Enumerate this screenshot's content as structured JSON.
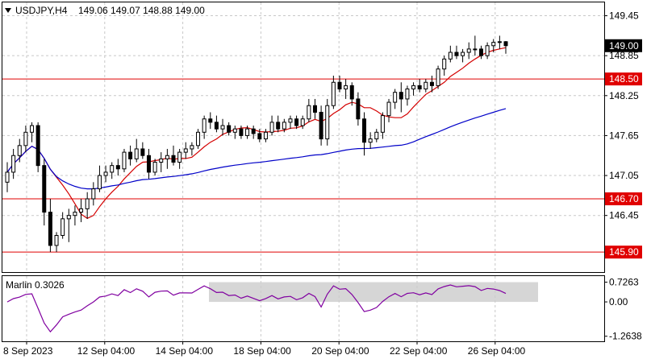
{
  "header": {
    "symbol_label": "USDJPY,H4",
    "ohlc_label": "149.06 149.07 148.88 149.00",
    "menu_icon": "triangle-down-icon"
  },
  "chart_data": {
    "type": "candlestick",
    "symbol": "USDJPY",
    "timeframe": "H4",
    "ohlc": {
      "open": 149.06,
      "high": 149.07,
      "low": 148.88,
      "close": 149.0
    },
    "ylim": [
      145.6,
      149.65
    ],
    "y_ticks": [
      "149.45",
      "148.85",
      "148.25",
      "147.65",
      "147.05",
      "146.45"
    ],
    "x_ticks": [
      "8 Sep 2023",
      "12 Sep 04:00",
      "14 Sep 04:00",
      "18 Sep 04:00",
      "20 Sep 04:00",
      "22 Sep 04:00",
      "26 Sep 04:00"
    ],
    "current_price": {
      "value": 149.0,
      "label": "149.00"
    },
    "levels": [
      {
        "value": 148.5,
        "label": "148.50",
        "color": "#e00000"
      },
      {
        "value": 146.7,
        "label": "146.70",
        "color": "#e00000"
      },
      {
        "value": 145.9,
        "label": "145.90",
        "color": "#e00000"
      }
    ],
    "candles": [
      [
        146.95,
        147.25,
        146.8,
        147.1
      ],
      [
        147.1,
        147.45,
        147.0,
        147.35
      ],
      [
        147.35,
        147.6,
        147.25,
        147.5
      ],
      [
        147.5,
        147.8,
        147.4,
        147.7
      ],
      [
        147.7,
        147.85,
        147.55,
        147.8
      ],
      [
        147.8,
        147.85,
        147.1,
        147.2
      ],
      [
        147.2,
        147.3,
        146.3,
        146.5
      ],
      [
        146.5,
        146.7,
        145.9,
        146.0
      ],
      [
        146.0,
        146.2,
        145.9,
        146.15
      ],
      [
        146.15,
        146.5,
        146.1,
        146.4
      ],
      [
        146.4,
        146.55,
        146.05,
        146.45
      ],
      [
        146.45,
        146.6,
        146.3,
        146.5
      ],
      [
        146.5,
        146.7,
        146.35,
        146.55
      ],
      [
        146.55,
        146.8,
        146.4,
        146.7
      ],
      [
        146.7,
        146.95,
        146.6,
        146.85
      ],
      [
        146.85,
        147.2,
        146.8,
        147.05
      ],
      [
        147.05,
        147.2,
        146.95,
        147.1
      ],
      [
        147.1,
        147.25,
        147.0,
        147.2
      ],
      [
        147.2,
        147.3,
        147.05,
        147.15
      ],
      [
        147.15,
        147.45,
        147.1,
        147.4
      ],
      [
        147.4,
        147.5,
        147.2,
        147.3
      ],
      [
        147.3,
        147.6,
        147.25,
        147.45
      ],
      [
        147.45,
        147.55,
        147.3,
        147.35
      ],
      [
        147.35,
        147.45,
        147.0,
        147.1
      ],
      [
        147.1,
        147.3,
        147.05,
        147.25
      ],
      [
        147.25,
        147.4,
        147.1,
        147.3
      ],
      [
        147.3,
        147.45,
        147.15,
        147.35
      ],
      [
        147.35,
        147.5,
        147.2,
        147.25
      ],
      [
        147.25,
        147.45,
        147.15,
        147.4
      ],
      [
        147.4,
        147.55,
        147.3,
        147.45
      ],
      [
        147.45,
        147.55,
        147.35,
        147.5
      ],
      [
        147.5,
        147.75,
        147.45,
        147.7
      ],
      [
        147.7,
        147.95,
        147.6,
        147.9
      ],
      [
        147.9,
        148.0,
        147.75,
        147.85
      ],
      [
        147.85,
        147.95,
        147.7,
        147.75
      ],
      [
        147.75,
        147.9,
        147.65,
        147.8
      ],
      [
        147.8,
        147.85,
        147.65,
        147.7
      ],
      [
        147.7,
        147.8,
        147.6,
        147.75
      ],
      [
        147.75,
        147.8,
        147.6,
        147.65
      ],
      [
        147.65,
        147.8,
        147.6,
        147.75
      ],
      [
        147.75,
        147.8,
        147.6,
        147.68
      ],
      [
        147.68,
        147.75,
        147.55,
        147.6
      ],
      [
        147.6,
        147.75,
        147.55,
        147.7
      ],
      [
        147.7,
        147.95,
        147.65,
        147.85
      ],
      [
        147.85,
        147.95,
        147.7,
        147.75
      ],
      [
        147.75,
        147.9,
        147.7,
        147.85
      ],
      [
        147.85,
        147.95,
        147.75,
        147.9
      ],
      [
        147.9,
        147.95,
        147.75,
        147.8
      ],
      [
        147.8,
        147.95,
        147.75,
        147.9
      ],
      [
        147.9,
        148.2,
        147.85,
        148.1
      ],
      [
        148.1,
        148.2,
        147.9,
        148.0
      ],
      [
        148.0,
        148.1,
        147.5,
        147.6
      ],
      [
        147.6,
        148.2,
        147.5,
        148.1
      ],
      [
        148.1,
        148.55,
        148.05,
        148.45
      ],
      [
        148.45,
        148.55,
        148.3,
        148.35
      ],
      [
        148.35,
        148.5,
        148.2,
        148.4
      ],
      [
        148.4,
        148.45,
        148.1,
        148.2
      ],
      [
        148.2,
        148.3,
        147.8,
        147.9
      ],
      [
        147.9,
        148.0,
        147.35,
        147.55
      ],
      [
        147.55,
        147.7,
        147.45,
        147.6
      ],
      [
        147.6,
        147.75,
        147.55,
        147.7
      ],
      [
        147.7,
        148.0,
        147.6,
        147.95
      ],
      [
        147.95,
        148.2,
        147.85,
        148.15
      ],
      [
        148.15,
        148.35,
        148.05,
        148.3
      ],
      [
        148.3,
        148.45,
        148.0,
        148.2
      ],
      [
        148.2,
        148.4,
        148.1,
        148.35
      ],
      [
        148.35,
        148.45,
        148.25,
        148.4
      ],
      [
        148.4,
        148.5,
        148.3,
        148.35
      ],
      [
        148.35,
        148.5,
        148.3,
        148.45
      ],
      [
        148.45,
        148.55,
        148.3,
        148.4
      ],
      [
        148.4,
        148.7,
        148.35,
        148.65
      ],
      [
        148.65,
        148.85,
        148.55,
        148.8
      ],
      [
        148.8,
        149.0,
        148.75,
        148.9
      ],
      [
        148.9,
        149.0,
        148.8,
        148.85
      ],
      [
        148.85,
        148.95,
        148.75,
        148.9
      ],
      [
        148.9,
        149.05,
        148.8,
        148.95
      ],
      [
        148.95,
        149.15,
        148.85,
        148.95
      ],
      [
        148.95,
        149.0,
        148.8,
        148.85
      ],
      [
        148.85,
        149.05,
        148.8,
        149.0
      ],
      [
        149.0,
        149.1,
        148.9,
        149.05
      ],
      [
        149.05,
        149.15,
        148.95,
        149.06
      ],
      [
        149.06,
        149.07,
        148.88,
        149.0
      ]
    ],
    "moving_averages": [
      {
        "color": "#d40000",
        "period": 8
      },
      {
        "color": "#0000c8",
        "period": 60
      }
    ],
    "indicator": {
      "label": "Marlin 0.3026",
      "value": 0.3026,
      "y_ticks": [
        "0.7263",
        "0.00",
        "-1.2638"
      ],
      "ylim": [
        -1.45,
        0.95
      ],
      "line_color": "#8000a0",
      "band": [
        0.0,
        0.7263
      ],
      "band_color": "#cccccc"
    },
    "colors": {
      "candle": "#000000",
      "bull_fill": "#ffffff",
      "bear_fill": "#000000",
      "grid": "#c8c8c8",
      "price_tag_bg": "#000000",
      "level_tag_bg": "#e00000"
    }
  }
}
